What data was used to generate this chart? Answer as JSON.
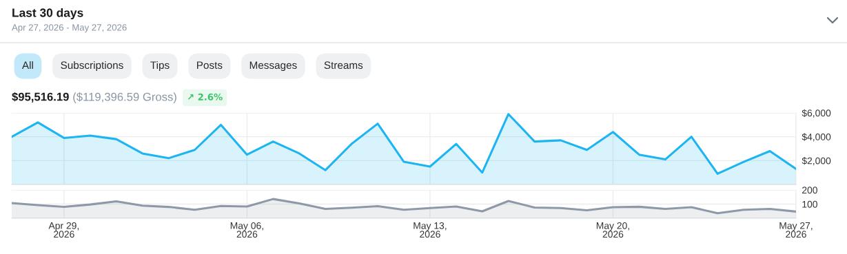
{
  "chart_data": [
    {
      "type": "area",
      "title": "Last 30 days",
      "subtitle": "Apr 27, 2026 - May 27, 2026",
      "annotations": [
        "All",
        "Subscriptions",
        "Tips",
        "Posts",
        "Messages",
        "Streams",
        "$95,516.19",
        "($119,396.59 Gross)",
        "↗ 2.6%"
      ],
      "x": [
        "2026-04-27",
        "2026-04-28",
        "2026-04-29",
        "2026-04-30",
        "2026-05-01",
        "2026-05-02",
        "2026-05-03",
        "2026-05-04",
        "2026-05-05",
        "2026-05-06",
        "2026-05-07",
        "2026-05-08",
        "2026-05-09",
        "2026-05-10",
        "2026-05-11",
        "2026-05-12",
        "2026-05-13",
        "2026-05-14",
        "2026-05-15",
        "2026-05-16",
        "2026-05-17",
        "2026-05-18",
        "2026-05-19",
        "2026-05-20",
        "2026-05-21",
        "2026-05-22",
        "2026-05-23",
        "2026-05-24",
        "2026-05-25",
        "2026-05-26",
        "2026-05-27"
      ],
      "series": [
        {
          "color": "#1cb5f2",
          "values": [
            4000,
            5200,
            3900,
            4100,
            3800,
            2600,
            2200,
            2900,
            5000,
            2500,
            3600,
            2600,
            1200,
            3400,
            5100,
            1900,
            1500,
            3400,
            1000,
            5900,
            3600,
            3700,
            2900,
            4400,
            2500,
            2100,
            4000,
            900,
            1900,
            2800,
            1300
          ]
        }
      ],
      "xlim": [
        "2026-04-27",
        "2026-05-27"
      ],
      "xticks": [
        {
          "value": "2026-04-29",
          "label": null
        },
        {
          "value": "2026-05-06",
          "label": null
        },
        {
          "value": "2026-05-13",
          "label": null
        },
        {
          "value": "2026-05-20",
          "label": null
        },
        {
          "value": "2026-05-27",
          "label": null
        }
      ],
      "ylim": [
        0,
        6000
      ],
      "yticks": [
        {
          "value": 0,
          "label": null
        },
        {
          "value": 2000,
          "label": "$2,000"
        },
        {
          "value": 4000,
          "label": "$4,000"
        },
        {
          "value": 6000,
          "label": "$6,000"
        }
      ],
      "tick_labels": "y",
      "grid": true
    },
    {
      "type": "area",
      "x": [
        "2026-04-27",
        "2026-04-28",
        "2026-04-29",
        "2026-04-30",
        "2026-05-01",
        "2026-05-02",
        "2026-05-03",
        "2026-05-04",
        "2026-05-05",
        "2026-05-06",
        "2026-05-07",
        "2026-05-08",
        "2026-05-09",
        "2026-05-10",
        "2026-05-11",
        "2026-05-12",
        "2026-05-13",
        "2026-05-14",
        "2026-05-15",
        "2026-05-16",
        "2026-05-17",
        "2026-05-18",
        "2026-05-19",
        "2026-05-20",
        "2026-05-21",
        "2026-05-22",
        "2026-05-23",
        "2026-05-24",
        "2026-05-25",
        "2026-05-26",
        "2026-05-27"
      ],
      "series": [
        {
          "color": "#8d99a8",
          "values": [
            107,
            93,
            80,
            97,
            120,
            89,
            80,
            60,
            87,
            83,
            136,
            105,
            66,
            74,
            85,
            60,
            72,
            83,
            49,
            122,
            76,
            72,
            56,
            78,
            81,
            66,
            78,
            35,
            60,
            66,
            47
          ]
        }
      ],
      "xlim": [
        "2026-04-27",
        "2026-05-27"
      ],
      "xticks": [
        {
          "value": "2026-04-29",
          "label": "Apr 29,\n2026"
        },
        {
          "value": "2026-05-06",
          "label": "May 06,\n2026"
        },
        {
          "value": "2026-05-13",
          "label": "May 13,\n2026"
        },
        {
          "value": "2026-05-20",
          "label": "May 20,\n2026"
        },
        {
          "value": "2026-05-27",
          "label": "May 27,\n2026"
        }
      ],
      "ylim": [
        0,
        200
      ],
      "yticks": [
        {
          "value": 0,
          "label": null
        },
        100,
        200
      ],
      "grid": true
    }
  ]
}
